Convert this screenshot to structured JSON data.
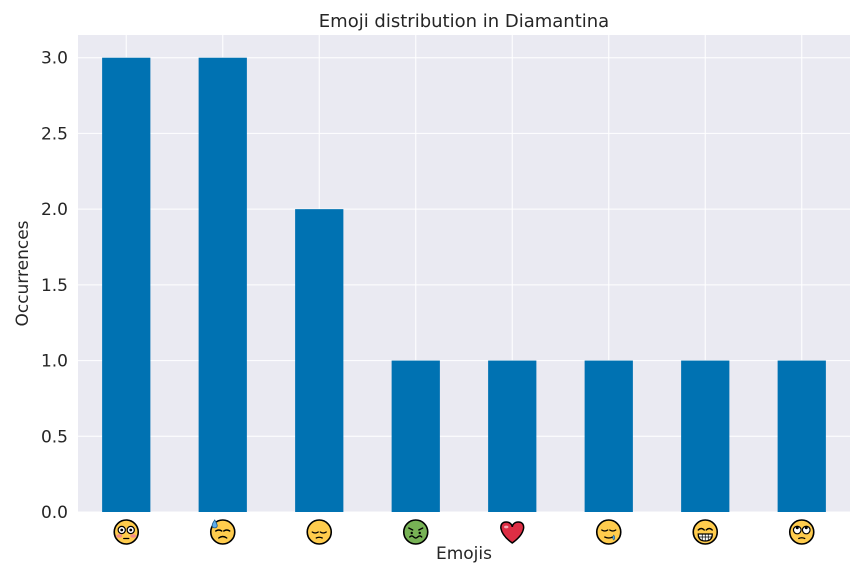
{
  "chart_data": {
    "type": "bar",
    "title": "Emoji distribution in Diamantina",
    "xlabel": "Emojis",
    "ylabel": "Occurrences",
    "categories": [
      "😳",
      "😓",
      "😔",
      "🤢",
      "❤️",
      "😪",
      "😁",
      "🙄"
    ],
    "category_icons": [
      "flushed-face",
      "downcast-sweat-face",
      "pensive-face",
      "nauseated-face",
      "red-heart",
      "sleepy-face",
      "grinning-face",
      "eye-roll-face"
    ],
    "values": [
      3,
      3,
      2,
      1,
      1,
      1,
      1,
      1
    ],
    "ylim": [
      0,
      3.15
    ],
    "yticks": [
      "0.0",
      "0.5",
      "1.0",
      "1.5",
      "2.0",
      "2.5",
      "3.0"
    ],
    "grid": true,
    "legend": "none",
    "bar_color": "#0072B2",
    "background_color": "#EAEAF2",
    "grid_color": "#FFFFFF"
  }
}
